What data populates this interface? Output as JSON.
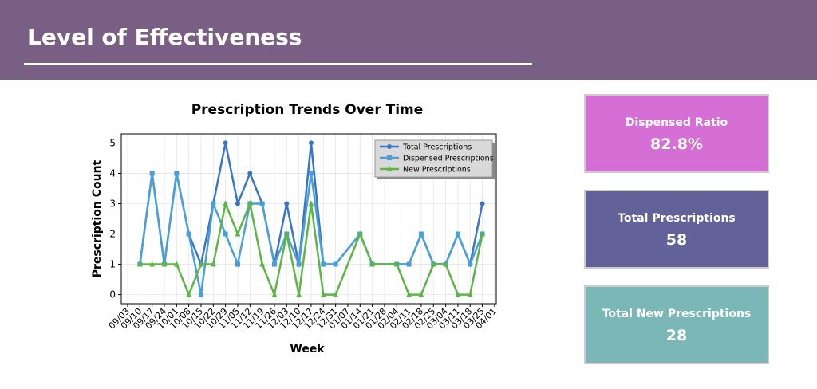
{
  "header": {
    "title": "Level of Effectiveness"
  },
  "chart_data": {
    "type": "line",
    "title": "Prescription Trends Over Time",
    "x_label": "Week",
    "y_label": "Prescription Count",
    "x": [
      "09/10",
      "09/17",
      "09/24",
      "10/01",
      "10/08",
      "10/15",
      "10/22",
      "10/29",
      "11/05",
      "11/12",
      "11/19",
      "11/26",
      "12/03",
      "12/10",
      "12/17",
      "12/24",
      "12/31",
      "01/14",
      "01/21",
      "02/04",
      "02/11",
      "02/18",
      "02/25",
      "03/04",
      "03/11",
      "03/18",
      "03/25"
    ],
    "xticks": [
      "09/03",
      "09/10",
      "09/17",
      "09/24",
      "10/01",
      "10/08",
      "10/15",
      "10/22",
      "10/29",
      "11/05",
      "11/12",
      "11/19",
      "11/26",
      "12/03",
      "12/10",
      "12/17",
      "12/24",
      "12/31",
      "01/07",
      "01/14",
      "01/21",
      "01/28",
      "02/04",
      "02/11",
      "02/18",
      "02/25",
      "03/04",
      "03/11",
      "03/18",
      "03/25",
      "04/01"
    ],
    "series": [
      {
        "name": "Total Prescriptions",
        "color": "#3a75c4",
        "marker": "circle",
        "values": [
          1,
          4,
          1,
          4,
          2,
          1,
          3,
          5,
          3,
          4,
          3,
          1,
          3,
          1,
          5,
          1,
          1,
          2,
          1,
          1,
          1,
          2,
          1,
          1,
          2,
          1,
          3
        ]
      },
      {
        "name": "Dispensed Prescriptions",
        "color": "#4a9fd8",
        "marker": "square",
        "values": [
          1,
          4,
          1,
          4,
          2,
          0,
          3,
          2,
          1,
          3,
          3,
          1,
          2,
          1,
          4,
          1,
          1,
          2,
          1,
          1,
          1,
          2,
          1,
          1,
          2,
          1,
          2
        ]
      },
      {
        "name": "New Prescriptions",
        "color": "#5cb646",
        "marker": "triangle",
        "values": [
          1,
          1,
          1,
          1,
          0,
          1,
          1,
          3,
          2,
          3,
          1,
          0,
          2,
          0,
          3,
          0,
          0,
          2,
          1,
          1,
          0,
          0,
          1,
          1,
          0,
          0,
          2
        ]
      }
    ],
    "ylim": [
      -0.3,
      5.3
    ],
    "yticks": [
      0,
      1,
      2,
      3,
      4,
      5
    ],
    "grid": true,
    "legend": "upper right"
  },
  "cards": [
    {
      "label": "Dispensed Ratio",
      "value": "82.8%",
      "color": "#d66fd5"
    },
    {
      "label": "Total Prescriptions",
      "value": "58",
      "color": "#62619a"
    },
    {
      "label": "Total New Prescriptions",
      "value": "28",
      "color": "#7cb7b7"
    }
  ]
}
